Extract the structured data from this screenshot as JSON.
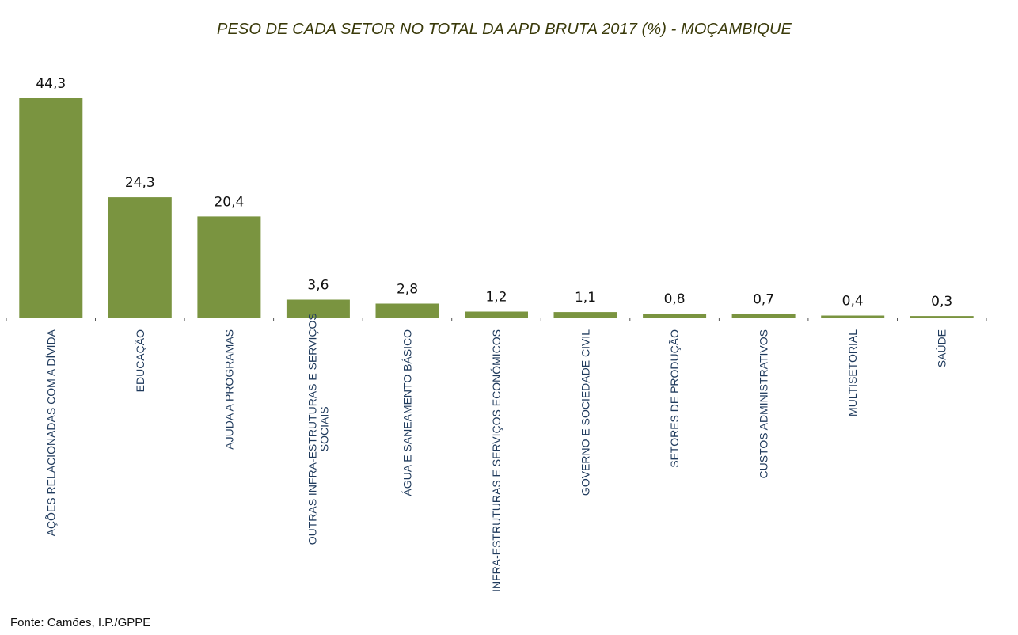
{
  "chart_data": {
    "type": "bar",
    "title": "PESO DE CADA SETOR NO TOTAL DA APD BRUTA 2017 (%) - MOÇAMBIQUE",
    "xlabel": "",
    "ylabel": "",
    "ylim": [
      0,
      44.3
    ],
    "grid": false,
    "legend": "none",
    "color": "#7a9440",
    "categories": [
      "AÇÕES RELACIONADAS COM A DÍVIDA",
      "EDUCAÇÃO",
      "AJUDA A PROGRAMAS",
      "OUTRAS INFRA-ESTRUTURAS E SERVIÇOS SOCIAIS",
      "ÁGUA E SANEAMENTO BÁSICO",
      "INFRA-ESTRUTURAS E SERVIÇOS ECONÓMICOS",
      "GOVERNO E SOCIEDADE CIVIL",
      "SETORES DE PRODUÇÃO",
      "CUSTOS ADMINISTRATIVOS",
      "MULTISETORIAL",
      "SAÚDE"
    ],
    "values": [
      44.3,
      24.3,
      20.4,
      3.6,
      2.8,
      1.2,
      1.1,
      0.8,
      0.7,
      0.4,
      0.3
    ],
    "value_labels": [
      "44,3",
      "24,3",
      "20,4",
      "3,6",
      "2,8",
      "1,2",
      "1,1",
      "0,8",
      "0,7",
      "0,4",
      "0,3"
    ]
  },
  "source": "Fonte: Camões, I.P./GPPE"
}
